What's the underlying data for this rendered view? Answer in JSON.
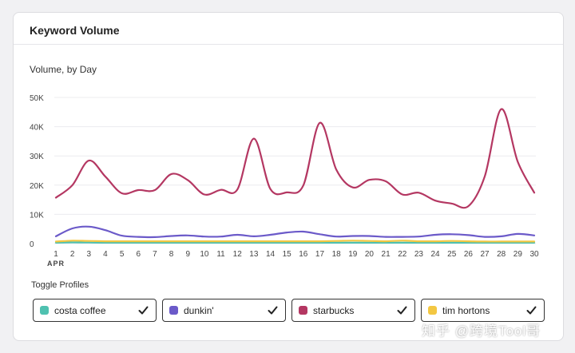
{
  "card": {
    "title": "Keyword Volume"
  },
  "chart_data": {
    "type": "line",
    "title": "Volume, by Day",
    "x": [
      1,
      2,
      3,
      4,
      5,
      6,
      7,
      8,
      9,
      10,
      11,
      12,
      13,
      14,
      15,
      16,
      17,
      18,
      19,
      20,
      21,
      22,
      23,
      24,
      25,
      26,
      27,
      28,
      29,
      30
    ],
    "x_tick_labels": [
      "1",
      "2",
      "3",
      "4",
      "5",
      "6",
      "7",
      "8",
      "9",
      "10",
      "11",
      "12",
      "13",
      "14",
      "15",
      "16",
      "17",
      "18",
      "19",
      "20",
      "21",
      "22",
      "23",
      "24",
      "25",
      "26",
      "27",
      "28",
      "29",
      "30"
    ],
    "x_month_label": "APR",
    "y_tick_labels": [
      "0",
      "10K",
      "20K",
      "30K",
      "40K",
      "50K"
    ],
    "ylim": [
      0,
      50000
    ],
    "grid": true,
    "series": [
      {
        "name": "costa coffee",
        "color": "#4fc1b0",
        "values": [
          300,
          400,
          350,
          300,
          300,
          300,
          300,
          300,
          300,
          300,
          300,
          300,
          300,
          300,
          300,
          300,
          300,
          300,
          300,
          300,
          300,
          300,
          300,
          300,
          300,
          300,
          300,
          300,
          300,
          300
        ]
      },
      {
        "name": "dunkin'",
        "color": "#6b5ac9",
        "values": [
          2500,
          5200,
          5800,
          4600,
          2700,
          2300,
          2200,
          2600,
          2800,
          2400,
          2400,
          3000,
          2500,
          3000,
          3800,
          4100,
          3200,
          2400,
          2600,
          2600,
          2300,
          2300,
          2400,
          3000,
          3200,
          2900,
          2300,
          2500,
          3300,
          2800
        ]
      },
      {
        "name": "starbucks",
        "color": "#b43762",
        "values": [
          15700,
          20000,
          28400,
          22900,
          17200,
          18300,
          18300,
          23800,
          21700,
          16800,
          18400,
          18500,
          35900,
          18700,
          17500,
          19900,
          41300,
          25300,
          19200,
          21800,
          21300,
          16800,
          17400,
          14700,
          13700,
          12800,
          23000,
          46000,
          28000,
          17400
        ]
      },
      {
        "name": "tim hortons",
        "color": "#f3c742",
        "values": [
          700,
          1000,
          900,
          800,
          800,
          800,
          800,
          800,
          800,
          800,
          800,
          800,
          800,
          800,
          800,
          800,
          800,
          900,
          1000,
          900,
          800,
          1000,
          800,
          800,
          900,
          800,
          700,
          700,
          700,
          700
        ]
      }
    ]
  },
  "toggles": {
    "title": "Toggle Profiles",
    "items": [
      {
        "label": "costa coffee",
        "color": "#4fc1b0"
      },
      {
        "label": "dunkin'",
        "color": "#6b5ac9"
      },
      {
        "label": "starbucks",
        "color": "#b43762"
      },
      {
        "label": "tim hortons",
        "color": "#f3c742"
      }
    ]
  },
  "watermark": "知乎 @跨境Tool哥"
}
